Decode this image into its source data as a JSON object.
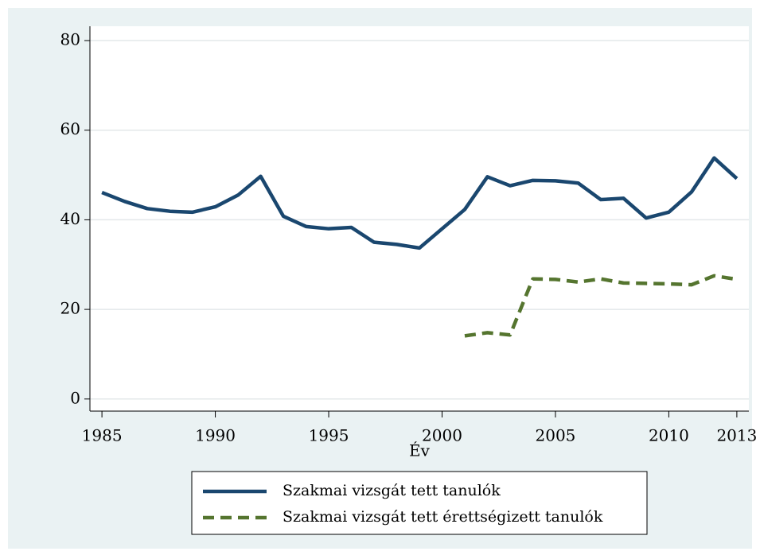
{
  "chart_data": {
    "type": "line",
    "x": [
      1985,
      1986,
      1987,
      1988,
      1989,
      1990,
      1991,
      1992,
      1993,
      1994,
      1995,
      1996,
      1997,
      1998,
      1999,
      2000,
      2001,
      2002,
      2003,
      2004,
      2005,
      2006,
      2007,
      2008,
      2009,
      2010,
      2011,
      2012,
      2013
    ],
    "series": [
      {
        "name": "Szakmai vizsgát tett tanulók",
        "color": "#1a476f",
        "dash": "solid",
        "values": [
          46.1,
          44.1,
          42.5,
          41.9,
          41.7,
          42.9,
          45.5,
          49.7,
          40.8,
          38.5,
          38.0,
          38.3,
          35.0,
          34.5,
          33.7,
          38.0,
          42.3,
          49.6,
          47.6,
          48.8,
          48.7,
          48.2,
          44.5,
          44.8,
          40.4,
          41.7,
          46.2,
          53.8,
          49.2
        ]
      },
      {
        "name": "Szakmai vizsgát tett érettségizett tanulók",
        "color": "#55752f",
        "dash": "dashed",
        "values": [
          null,
          null,
          null,
          null,
          null,
          null,
          null,
          null,
          null,
          null,
          null,
          null,
          null,
          null,
          null,
          null,
          14.1,
          14.8,
          14.3,
          26.8,
          26.7,
          26.1,
          26.8,
          25.9,
          25.8,
          25.7,
          25.5,
          27.5,
          26.7
        ]
      }
    ],
    "x_label": "Év",
    "xlim": [
      1984.47,
      2013.53
    ],
    "xticks": [
      1985,
      1990,
      1995,
      2000,
      2005,
      2010,
      2013
    ],
    "ylim": [
      -2.7,
      83.2
    ],
    "yticks": [
      0,
      20,
      40,
      60,
      80
    ],
    "grid": true,
    "legend": "bottom"
  }
}
